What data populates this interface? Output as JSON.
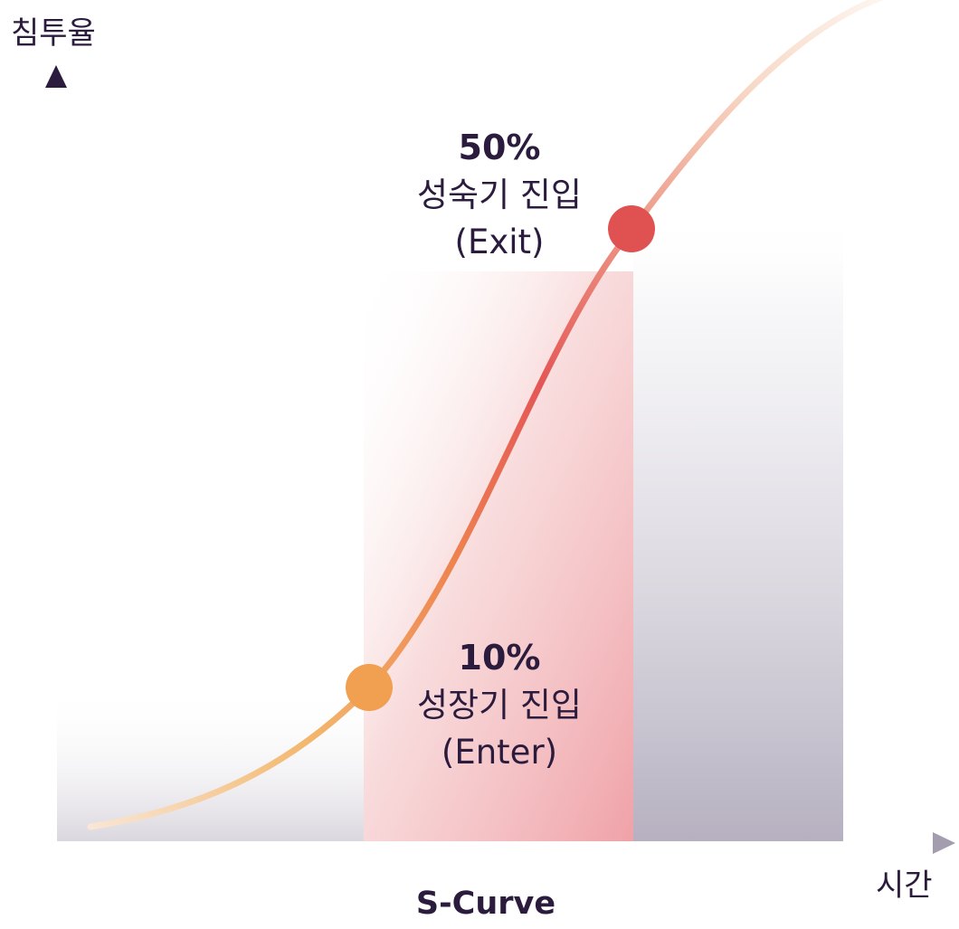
{
  "figure": {
    "y_axis_label": "침투율",
    "x_axis_label": "시간",
    "caption": "S-Curve"
  },
  "milestones": [
    {
      "percent": "10%",
      "stage": "성장기 진입",
      "english": "(Enter)",
      "color": "#F0A050"
    },
    {
      "percent": "50%",
      "stage": "성숙기 진입",
      "english": "(Exit)",
      "color": "#E05252"
    }
  ],
  "colors": {
    "axis": "#2B1B3D",
    "curve_start": "#F5C98A",
    "curve_mid": "#E55555",
    "curve_end": "#F7E3D5",
    "growth_zone": "#EFA2A8",
    "mature_zone": "#B6B0C0",
    "intro_zone": "#DAD7DE",
    "text": "#2B1B3D"
  }
}
